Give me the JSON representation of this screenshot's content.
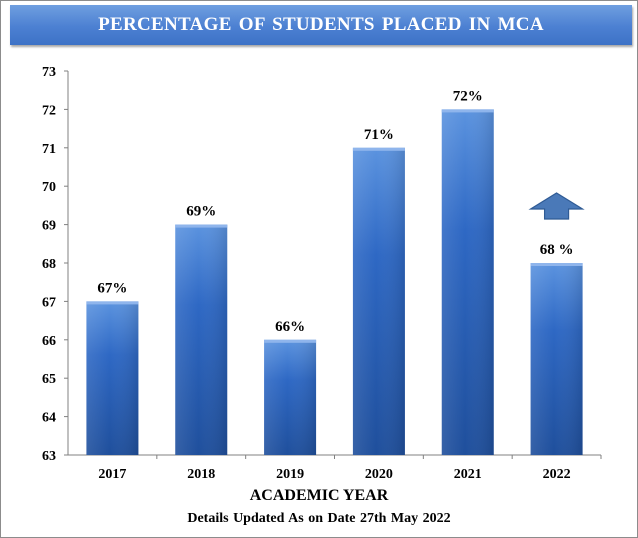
{
  "chart_data": {
    "type": "bar",
    "title": "PERCENTAGE OF STUDENTS PLACED IN MCA",
    "xlabel": "ACADEMIC YEAR",
    "ylabel": "",
    "footnote": "Details Updated As on Date 27th May 2022",
    "categories": [
      "2017",
      "2018",
      "2019",
      "2020",
      "2021",
      "2022"
    ],
    "values": [
      67,
      69,
      66,
      71,
      72,
      68
    ],
    "data_labels": [
      "67%",
      "69%",
      "66%",
      "71%",
      "72%",
      "68 %"
    ],
    "ylim": [
      63,
      73
    ],
    "yticks": [
      63,
      64,
      65,
      66,
      67,
      68,
      69,
      70,
      71,
      72,
      73
    ],
    "grid": false,
    "legend": "none",
    "annotations": [
      {
        "type": "up-arrow",
        "category": "2022"
      }
    ],
    "colors": {
      "bar_top": "#5b93df",
      "bar_mid": "#2e68c4",
      "bar_bottom": "#1f4f9c",
      "title_bg": "#4c80d2",
      "arrow": "#4a79b8"
    }
  }
}
